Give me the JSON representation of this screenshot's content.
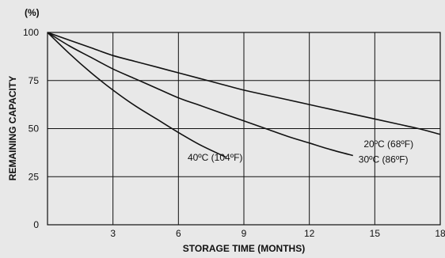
{
  "chart_data": {
    "type": "line",
    "unit_label": "(%)",
    "xlabel": "STORAGE TIME (MONTHS)",
    "ylabel": "REMAINING CAPACITY",
    "xlim": [
      0,
      18
    ],
    "ylim": [
      0,
      100
    ],
    "x_ticks": [
      "3",
      "6",
      "9",
      "12",
      "15",
      "18"
    ],
    "y_ticks": [
      "0",
      "25",
      "50",
      "75",
      "100"
    ],
    "grid": true,
    "colors": {
      "background": "#e8e8e8",
      "line": "#111111",
      "grid": "#111111"
    },
    "series": [
      {
        "name": "20ºC (68ºF)",
        "x": [
          0,
          1,
          2,
          3,
          4,
          5,
          6,
          7,
          8,
          9,
          10,
          11,
          12,
          13,
          14,
          15,
          16,
          17,
          18
        ],
        "y": [
          100,
          96,
          92,
          88,
          85,
          82,
          79,
          76,
          73,
          70,
          67.5,
          65,
          62.5,
          60,
          57.5,
          55,
          52.5,
          50,
          47
        ]
      },
      {
        "name": "30ºC (86ºF)",
        "x": [
          0,
          1,
          2,
          3,
          4,
          5,
          6,
          7,
          8,
          9,
          10,
          11,
          12,
          13,
          14
        ],
        "y": [
          100,
          93,
          87,
          81,
          76,
          71,
          66,
          62,
          58,
          54,
          50,
          46,
          42.5,
          39,
          36
        ]
      },
      {
        "name": "40ºC (104ºF)",
        "x": [
          0,
          1,
          2,
          3,
          4,
          5,
          6,
          7,
          8.2
        ],
        "y": [
          100,
          89,
          79,
          70,
          62,
          55,
          48,
          41.5,
          35
        ]
      }
    ]
  }
}
